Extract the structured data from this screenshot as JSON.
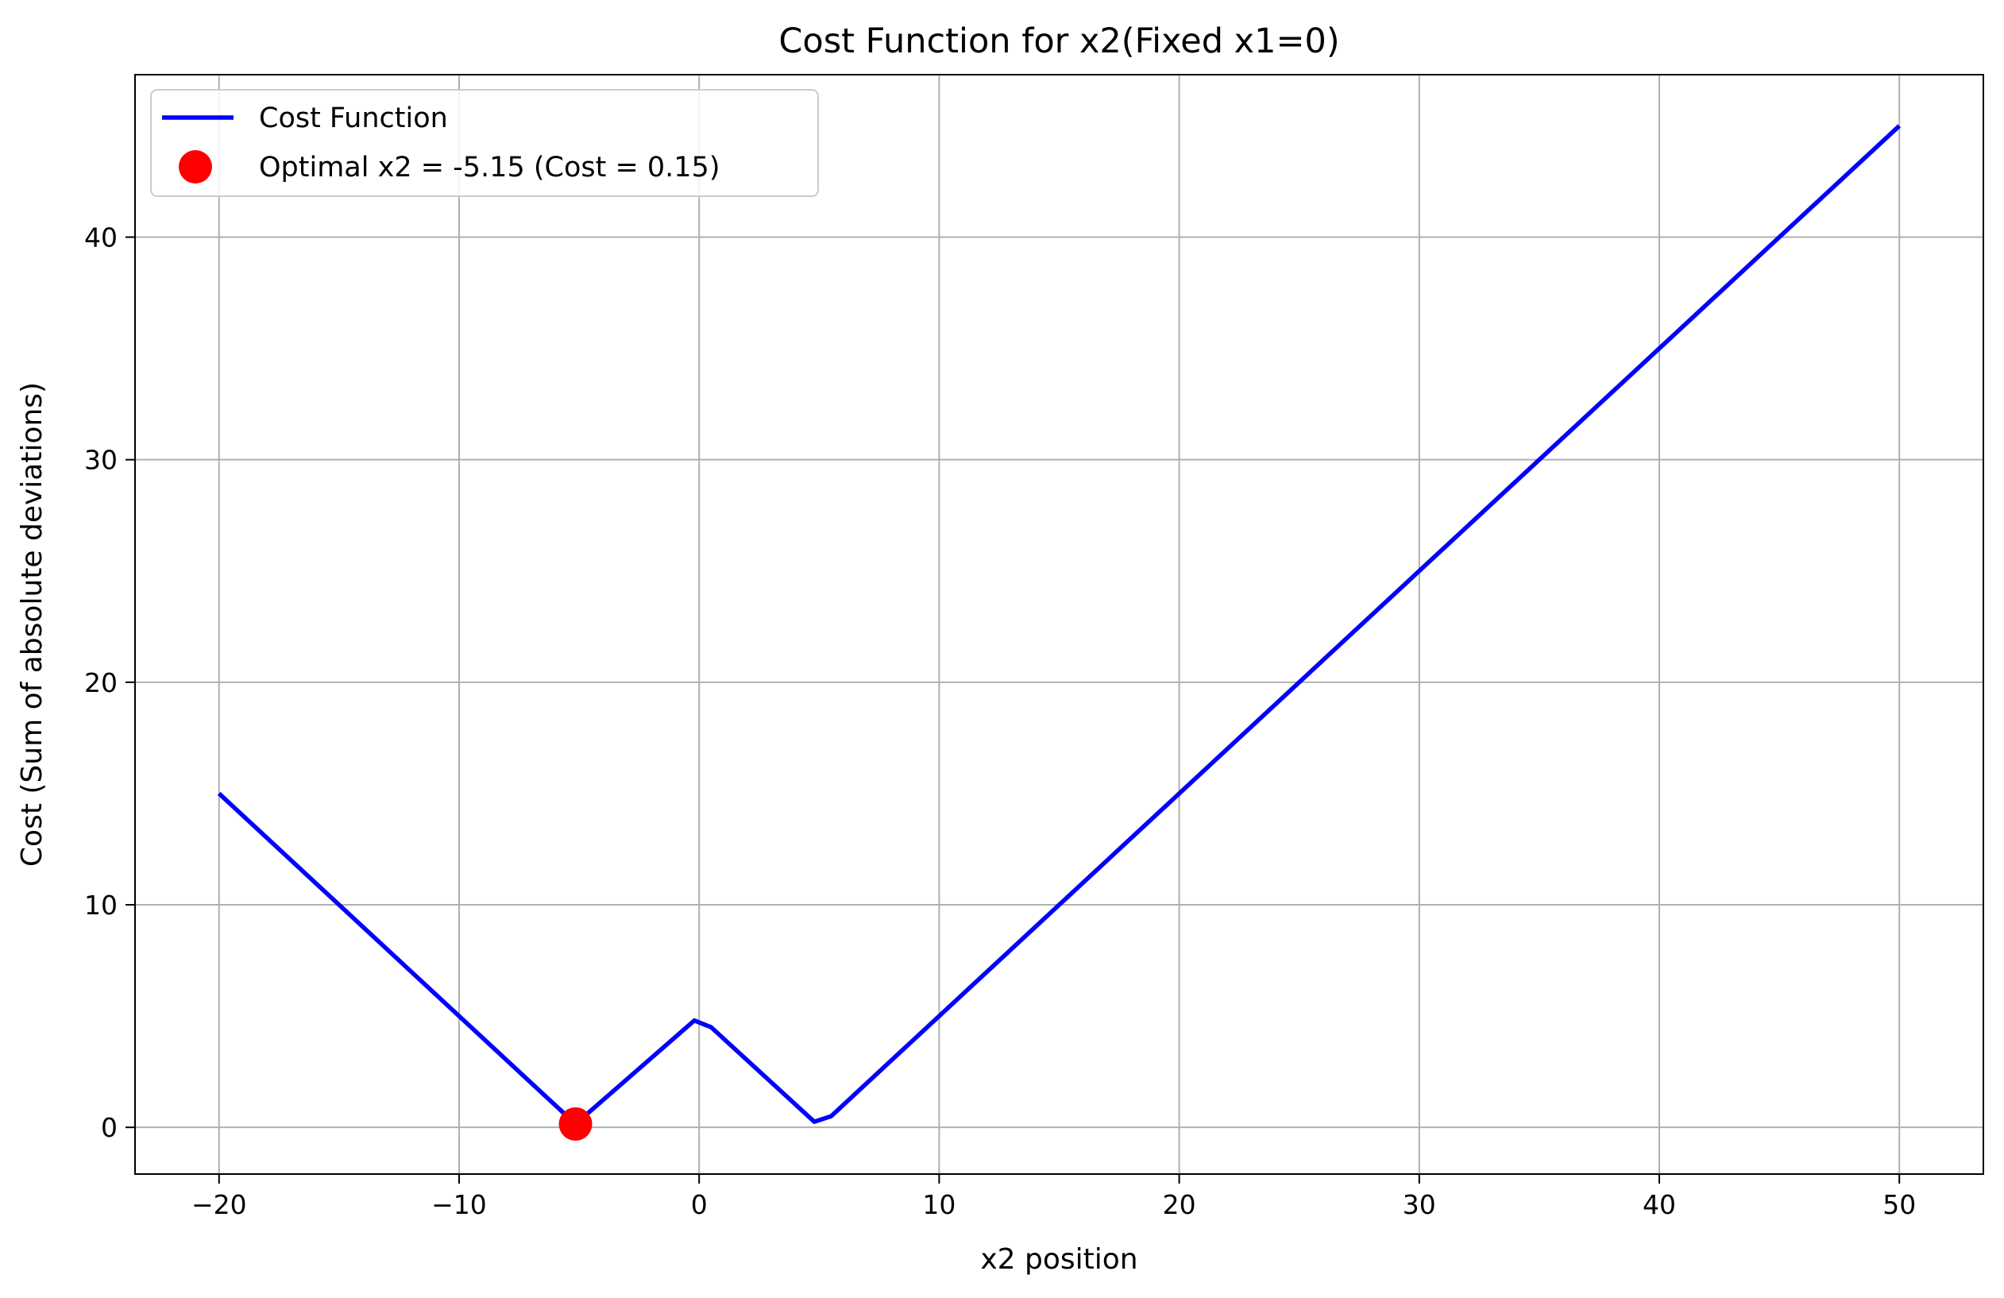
{
  "chart_data": {
    "type": "line",
    "title": "Cost Function for x2(Fixed x1=0)",
    "xlabel": "x2 position",
    "ylabel": "Cost (Sum of absolute deviations)",
    "xlim": [
      -23.5,
      53.5
    ],
    "ylim": [
      -2.1,
      47.3
    ],
    "grid": true,
    "legend_position": "top-left",
    "x_ticks": [
      -20,
      -10,
      0,
      10,
      20,
      30,
      40,
      50
    ],
    "x_tick_labels": [
      "−20",
      "−10",
      "0",
      "10",
      "20",
      "30",
      "40",
      "50"
    ],
    "y_ticks": [
      0,
      10,
      20,
      30,
      40
    ],
    "y_tick_labels": [
      "0",
      "10",
      "20",
      "30",
      "40"
    ],
    "series": [
      {
        "name": "Cost Function",
        "color": "#0000ff",
        "x": [
          -20,
          -5.15,
          -0.2,
          0.5,
          4.8,
          5.5,
          50
        ],
        "y": [
          15,
          0.15,
          4.8,
          4.5,
          0.25,
          0.5,
          45
        ]
      }
    ],
    "points": [
      {
        "name": "Optimal x2 = -5.15 (Cost = 0.15)",
        "color": "#ff0000",
        "x": -5.15,
        "y": 0.15
      }
    ]
  }
}
